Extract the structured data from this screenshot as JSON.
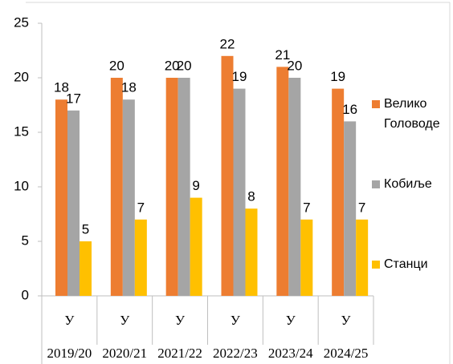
{
  "chart_data": {
    "type": "bar",
    "categories": [
      "У",
      "У",
      "У",
      "У",
      "У",
      "У"
    ],
    "category_groups": [
      "2019/20",
      "2020/21",
      "2021/22",
      "2022/23",
      "2023/24",
      "2024/25"
    ],
    "series": [
      {
        "name": "Велико Головоде",
        "color": "#ED7D31",
        "values": [
          18,
          20,
          20,
          22,
          21,
          19
        ]
      },
      {
        "name": "Кобиље",
        "color": "#A5A5A5",
        "values": [
          17,
          18,
          20,
          19,
          20,
          16
        ]
      },
      {
        "name": "Станци",
        "color": "#FFC000",
        "values": [
          5,
          7,
          9,
          8,
          7,
          7
        ]
      }
    ],
    "ylim": [
      0,
      25
    ],
    "yticks": [
      0,
      5,
      10,
      15,
      20,
      25
    ],
    "grid": false,
    "legend": "right"
  }
}
